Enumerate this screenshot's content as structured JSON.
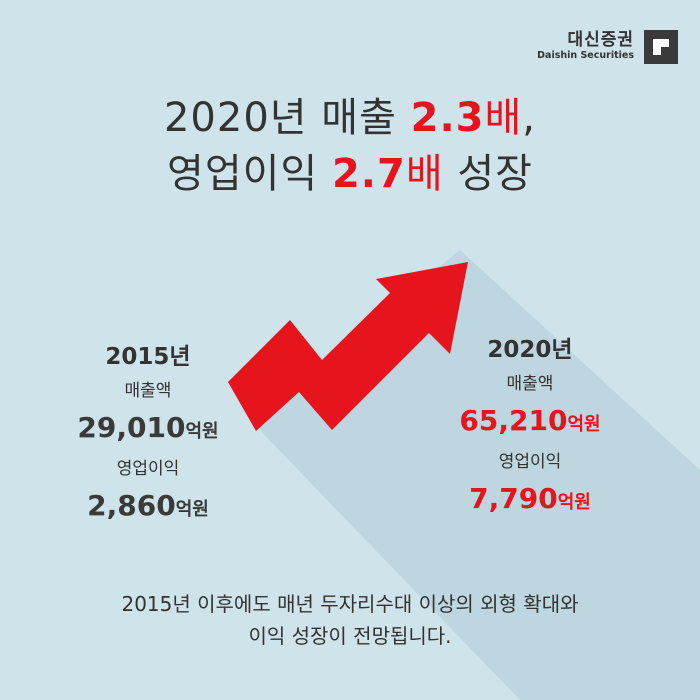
{
  "brand": {
    "name_kr": "대신증권",
    "name_en": "Daishin Securities"
  },
  "headline": {
    "line1_prefix": "2020년 매출 ",
    "line1_number": "2.3",
    "line1_unit": "배",
    "line1_suffix": ",",
    "line2_prefix": "영업이익 ",
    "line2_number": "2.7",
    "line2_unit": "배",
    "line2_suffix": " 성장"
  },
  "year2015": {
    "year": "2015년",
    "sales_label": "매출액",
    "sales_value": "29,010",
    "sales_unit": "억원",
    "profit_label": "영업이익",
    "profit_value": "2,860",
    "profit_unit": "억원"
  },
  "year2020": {
    "year": "2020년",
    "sales_label": "매출액",
    "sales_value": "65,210",
    "sales_unit": "억원",
    "profit_label": "영업이익",
    "profit_value": "7,790",
    "profit_unit": "억원"
  },
  "footer": {
    "line1": "2015년 이후에도 매년 두자리수대 이상의 외형 확대와",
    "line2": "이익 성장이 전망됩니다."
  },
  "colors": {
    "background": "#cfe3ea",
    "accent_red": "#e5141d",
    "text_dark": "#333333"
  },
  "icons": [
    "daishin-logo-icon",
    "growth-arrow-icon"
  ]
}
